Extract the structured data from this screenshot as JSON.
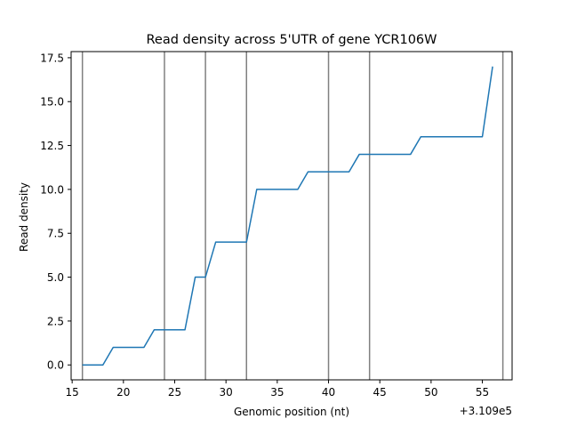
{
  "chart_data": {
    "type": "line",
    "title": "Read density across 5'UTR of gene YCR106W",
    "xlabel": "Genomic position (nt)",
    "ylabel": "Read density",
    "x_offset_label": "+3.109e5",
    "x": [
      16,
      17,
      18,
      19,
      20,
      21,
      22,
      23,
      24,
      25,
      26,
      27,
      28,
      29,
      30,
      31,
      32,
      33,
      34,
      35,
      36,
      37,
      38,
      39,
      40,
      41,
      42,
      43,
      44,
      45,
      46,
      47,
      48,
      49,
      50,
      51,
      52,
      53,
      54,
      55,
      56
    ],
    "series": [
      {
        "values": [
          0,
          0,
          0,
          1,
          1,
          1,
          1,
          2,
          2,
          2,
          2,
          5,
          5,
          7,
          7,
          7,
          7,
          10,
          10,
          10,
          10,
          10,
          11,
          11,
          11,
          11,
          11,
          12,
          12,
          12,
          12,
          12,
          12,
          13,
          13,
          13,
          13,
          13,
          13,
          13,
          17
        ],
        "color": "#1f77b4"
      }
    ],
    "vlines": {
      "x": [
        16,
        24,
        28,
        32,
        40,
        44,
        57
      ],
      "color": "#808080"
    },
    "xlim": [
      14.9,
      57.9
    ],
    "ylim": [
      -0.85,
      17.85
    ],
    "xticks": [
      15,
      20,
      25,
      30,
      35,
      40,
      45,
      50,
      55
    ],
    "xtick_labels": [
      "15",
      "20",
      "25",
      "30",
      "35",
      "40",
      "45",
      "50",
      "55"
    ],
    "yticks": [
      0,
      2.5,
      5,
      7.5,
      10,
      12.5,
      15,
      17.5
    ],
    "ytick_labels": [
      "0.0",
      "2.5",
      "5.0",
      "7.5",
      "10.0",
      "12.5",
      "15.0",
      "17.5"
    ],
    "grid": false,
    "legend": false
  }
}
